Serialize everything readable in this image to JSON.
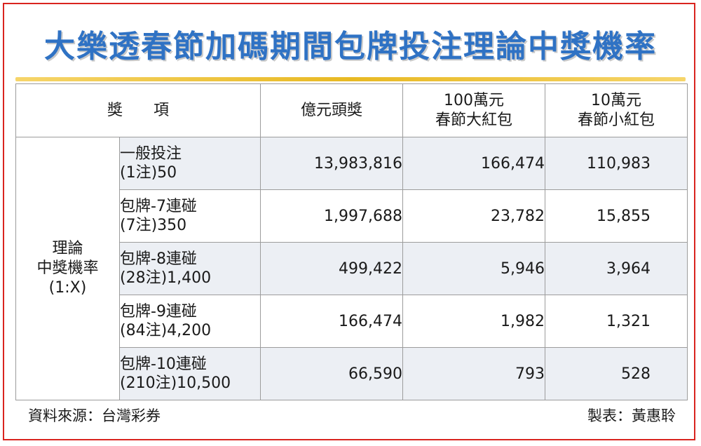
{
  "title": "大樂透春節加碼期間包牌投注理論中獎機率",
  "header": {
    "col1": "獎　　項",
    "col2": "億元頭獎",
    "col3_line1": "100萬元",
    "col3_line2": "春節大紅包",
    "col4_line1": "10萬元",
    "col4_line2": "春節小紅包"
  },
  "row_group": {
    "line1": "理論",
    "line2": "中獎機率",
    "line3": "(1:X)"
  },
  "rows": [
    {
      "item_line1": "一般投注",
      "item_line2": "(1注)50",
      "c2": "13,983,816",
      "c3": "166,474",
      "c4": "110,983"
    },
    {
      "item_line1": "包牌-7連碰",
      "item_line2": "(7注)350",
      "c2": "1,997,688",
      "c3": "23,782",
      "c4": "15,855"
    },
    {
      "item_line1": "包牌-8連碰",
      "item_line2": "(28注)1,400",
      "c2": "499,422",
      "c3": "5,946",
      "c4": "3,964"
    },
    {
      "item_line1": "包牌-9連碰",
      "item_line2": "(84注)4,200",
      "c2": "166,474",
      "c3": "1,982",
      "c4": "1,321"
    },
    {
      "item_line1": "包牌-10連碰",
      "item_line2": "(210注)10,500",
      "c2": "66,590",
      "c3": "793",
      "c4": "528"
    }
  ],
  "footer": {
    "source": "資料來源：台灣彩券",
    "author": "製表：黃惠聆"
  },
  "colors": {
    "title": "#2f72c4",
    "frame": "#d9241f",
    "rule": "#e8b923",
    "shade": "#eceff4"
  }
}
